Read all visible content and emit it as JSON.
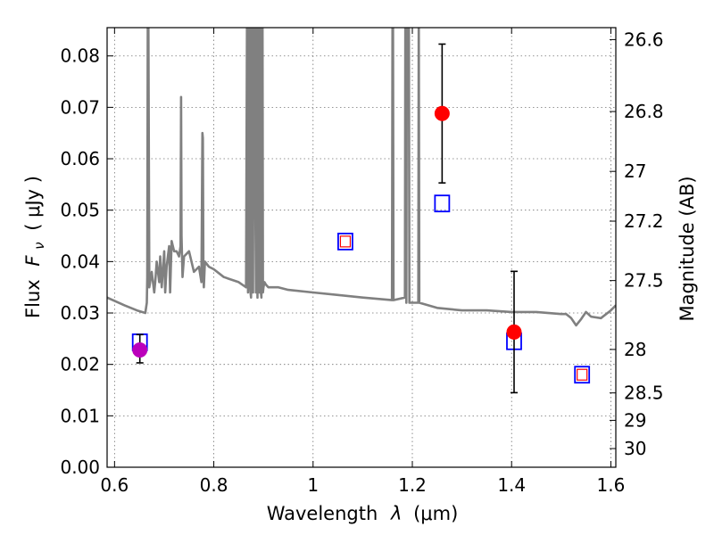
{
  "chart_data": {
    "type": "scatter",
    "title": "",
    "xlabel_text": "Wavelength",
    "xlabel_symbol": "λ",
    "xlabel_unit": "(μm)",
    "ylabel_text": "Flux",
    "ylabel_symbol": "F",
    "ylabel_subscript": "ν",
    "ylabel_unit": "( μJy )",
    "y2label": "Magnitude (AB)",
    "xlim": [
      0.585,
      1.61
    ],
    "ylim": [
      0.0,
      0.0855
    ],
    "grid": true,
    "x_ticks": [
      0.6,
      0.8,
      1.0,
      1.2,
      1.4,
      1.6
    ],
    "x_tick_labels": [
      "0.6",
      "0.8",
      "1",
      "1.2",
      "1.4",
      "1.6"
    ],
    "y_ticks": [
      0.0,
      0.01,
      0.02,
      0.03,
      0.04,
      0.05,
      0.06,
      0.07,
      0.08
    ],
    "y_tick_labels": [
      "0.00",
      "0.01",
      "0.02",
      "0.03",
      "0.04",
      "0.05",
      "0.06",
      "0.07",
      "0.08"
    ],
    "y2_ticks": [
      26.6,
      26.8,
      27,
      27.2,
      27.5,
      28,
      28.5,
      29,
      30
    ],
    "y2_tick_labels": [
      "26.6",
      "26.8",
      "27",
      "27.2",
      "27.5",
      "28",
      "28.5",
      "29",
      "30"
    ],
    "colors": {
      "model": "#808080",
      "observed": "#ff0000",
      "observed_alt": "#bb00bb",
      "model_box": "#0000ff",
      "model_box_inner": "#ff0000",
      "errorbar": "#000000"
    },
    "series": [
      {
        "name": "model spectrum",
        "kind": "line",
        "x": [
          0.585,
          0.62,
          0.645,
          0.662,
          0.665,
          0.666,
          0.667,
          0.668,
          0.67,
          0.675,
          0.68,
          0.682,
          0.685,
          0.69,
          0.692,
          0.695,
          0.7,
          0.702,
          0.705,
          0.71,
          0.712,
          0.715,
          0.72,
          0.725,
          0.73,
          0.733,
          0.734,
          0.735,
          0.737,
          0.74,
          0.75,
          0.76,
          0.77,
          0.775,
          0.777,
          0.778,
          0.779,
          0.78,
          0.782,
          0.79,
          0.8,
          0.82,
          0.85,
          0.865,
          0.867,
          0.868,
          0.869,
          0.87,
          0.872,
          0.873,
          0.874,
          0.875,
          0.876,
          0.878,
          0.879,
          0.88,
          0.881,
          0.885,
          0.886,
          0.887,
          0.888,
          0.889,
          0.89,
          0.892,
          0.893,
          0.894,
          0.895,
          0.896,
          0.897,
          0.898,
          0.899,
          0.9,
          0.902,
          0.905,
          0.91,
          0.93,
          0.95,
          1.0,
          1.05,
          1.1,
          1.159,
          1.16,
          1.161,
          1.162,
          1.185,
          1.186,
          1.187,
          1.188,
          1.189,
          1.19,
          1.191,
          1.192,
          1.193,
          1.194,
          1.21,
          1.212,
          1.213,
          1.214,
          1.25,
          1.3,
          1.35,
          1.4,
          1.45,
          1.5,
          1.51,
          1.52,
          1.53,
          1.54,
          1.55,
          1.56,
          1.58,
          1.6,
          1.61
        ],
        "y": [
          0.033,
          0.0315,
          0.0305,
          0.03,
          0.032,
          0.037,
          0.09,
          0.09,
          0.035,
          0.038,
          0.034,
          0.036,
          0.04,
          0.036,
          0.041,
          0.035,
          0.042,
          0.034,
          0.039,
          0.043,
          0.034,
          0.044,
          0.042,
          0.042,
          0.041,
          0.043,
          0.072,
          0.045,
          0.037,
          0.041,
          0.042,
          0.038,
          0.039,
          0.036,
          0.065,
          0.064,
          0.038,
          0.035,
          0.04,
          0.039,
          0.0385,
          0.037,
          0.036,
          0.035,
          0.09,
          0.09,
          0.034,
          0.036,
          0.09,
          0.09,
          0.034,
          0.033,
          0.09,
          0.09,
          0.034,
          0.09,
          0.09,
          0.034,
          0.09,
          0.09,
          0.033,
          0.09,
          0.09,
          0.034,
          0.09,
          0.09,
          0.034,
          0.033,
          0.09,
          0.09,
          0.034,
          0.035,
          0.036,
          0.0355,
          0.035,
          0.035,
          0.0345,
          0.034,
          0.0335,
          0.033,
          0.0325,
          0.09,
          0.09,
          0.0325,
          0.033,
          0.09,
          0.09,
          0.032,
          0.09,
          0.09,
          0.09,
          0.09,
          0.09,
          0.032,
          0.032,
          0.032,
          0.09,
          0.032,
          0.031,
          0.0305,
          0.0305,
          0.0302,
          0.0302,
          0.0298,
          0.0298,
          0.029,
          0.0276,
          0.0288,
          0.0302,
          0.0293,
          0.029,
          0.0305,
          0.0315
        ]
      },
      {
        "name": "model photometry",
        "kind": "square",
        "points": [
          {
            "x": 0.651,
            "y": 0.0243
          },
          {
            "x": 1.065,
            "y": 0.0439
          },
          {
            "x": 1.26,
            "y": 0.0513
          },
          {
            "x": 1.405,
            "y": 0.0245
          },
          {
            "x": 1.542,
            "y": 0.018
          }
        ]
      },
      {
        "name": "observed photometry",
        "kind": "errorbar",
        "points": [
          {
            "x": 0.651,
            "y": 0.0228,
            "yerr_low": 0.0025,
            "yerr_high": 0.003,
            "color": "observed_alt"
          },
          {
            "x": 1.26,
            "y": 0.0688,
            "yerr_low": 0.0135,
            "yerr_high": 0.0135,
            "color": "observed"
          },
          {
            "x": 1.405,
            "y": 0.0263,
            "yerr_low": 0.0118,
            "yerr_high": 0.0118,
            "color": "observed"
          }
        ]
      },
      {
        "name": "upper limit",
        "kind": "square_inner",
        "points": [
          {
            "x": 1.065,
            "y": 0.0439
          },
          {
            "x": 1.542,
            "y": 0.018
          }
        ]
      }
    ]
  }
}
